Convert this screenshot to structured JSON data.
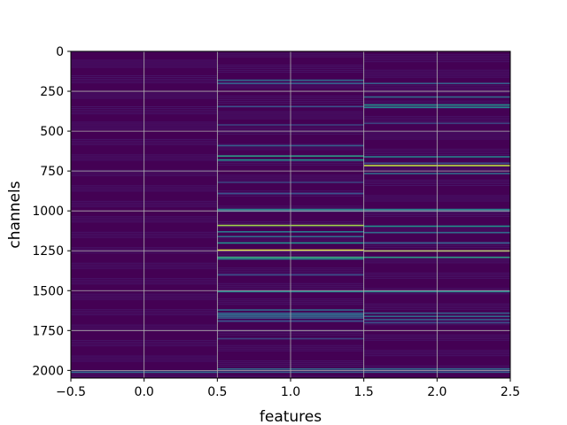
{
  "chart_data": {
    "type": "heatmap",
    "title": "",
    "xlabel": "features",
    "ylabel": "channels",
    "xlim": [
      -0.5,
      2.5
    ],
    "ylim": [
      2048,
      0
    ],
    "y_inverted": true,
    "x_ticks": [
      -0.5,
      0.0,
      0.5,
      1.0,
      1.5,
      2.0,
      2.5
    ],
    "x_tick_labels": [
      "−0.5",
      "0.0",
      "0.5",
      "1.0",
      "1.5",
      "2.0",
      "2.5"
    ],
    "y_ticks": [
      0,
      250,
      500,
      750,
      1000,
      1250,
      1500,
      1750,
      2000
    ],
    "y_tick_labels": [
      "0",
      "250",
      "500",
      "750",
      "1000",
      "1250",
      "1500",
      "1750",
      "2000"
    ],
    "grid": true,
    "colormap": "viridis",
    "background_color": "#440154",
    "columns": [
      {
        "feature": 0,
        "stripes": [
          {
            "y": 2010,
            "v": 0.35
          }
        ]
      },
      {
        "feature": 1,
        "stripes": [
          {
            "y": 180,
            "v": 0.35
          },
          {
            "y": 200,
            "v": 0.3
          },
          {
            "y": 345,
            "v": 0.25
          },
          {
            "y": 460,
            "v": 0.2
          },
          {
            "y": 590,
            "v": 0.3
          },
          {
            "y": 655,
            "v": 0.55
          },
          {
            "y": 680,
            "v": 0.5
          },
          {
            "y": 820,
            "v": 0.2
          },
          {
            "y": 890,
            "v": 0.25
          },
          {
            "y": 990,
            "v": 0.45
          },
          {
            "y": 1000,
            "v": 0.35
          },
          {
            "y": 1090,
            "v": 0.85
          },
          {
            "y": 1130,
            "v": 0.4
          },
          {
            "y": 1160,
            "v": 0.35
          },
          {
            "y": 1200,
            "v": 0.5
          },
          {
            "y": 1245,
            "v": 0.95
          },
          {
            "y": 1290,
            "v": 0.6
          },
          {
            "y": 1300,
            "v": 0.45
          },
          {
            "y": 1400,
            "v": 0.25
          },
          {
            "y": 1505,
            "v": 0.45
          },
          {
            "y": 1620,
            "v": 0.35
          },
          {
            "y": 1640,
            "v": 0.3
          },
          {
            "y": 1650,
            "v": 0.35
          },
          {
            "y": 1660,
            "v": 0.3
          },
          {
            "y": 1670,
            "v": 0.3
          },
          {
            "y": 1690,
            "v": 0.25
          },
          {
            "y": 1800,
            "v": 0.2
          },
          {
            "y": 1990,
            "v": 0.35
          },
          {
            "y": 2010,
            "v": 0.3
          }
        ]
      },
      {
        "feature": 2,
        "stripes": [
          {
            "y": 200,
            "v": 0.3
          },
          {
            "y": 285,
            "v": 0.35
          },
          {
            "y": 335,
            "v": 0.5
          },
          {
            "y": 350,
            "v": 0.45
          },
          {
            "y": 450,
            "v": 0.2
          },
          {
            "y": 660,
            "v": 0.45
          },
          {
            "y": 700,
            "v": 0.25
          },
          {
            "y": 715,
            "v": 0.9
          },
          {
            "y": 765,
            "v": 0.35
          },
          {
            "y": 990,
            "v": 0.45
          },
          {
            "y": 1000,
            "v": 0.3
          },
          {
            "y": 1095,
            "v": 0.5
          },
          {
            "y": 1135,
            "v": 0.35
          },
          {
            "y": 1200,
            "v": 0.3
          },
          {
            "y": 1250,
            "v": 0.9
          },
          {
            "y": 1290,
            "v": 0.55
          },
          {
            "y": 1505,
            "v": 0.45
          },
          {
            "y": 1640,
            "v": 0.3
          },
          {
            "y": 1660,
            "v": 0.35
          },
          {
            "y": 1680,
            "v": 0.3
          },
          {
            "y": 1700,
            "v": 0.25
          },
          {
            "y": 1990,
            "v": 0.35
          },
          {
            "y": 2010,
            "v": 0.3
          }
        ]
      }
    ]
  }
}
